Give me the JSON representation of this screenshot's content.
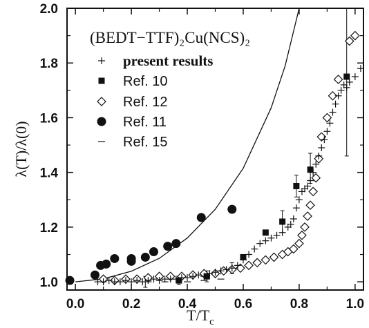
{
  "chart_data": {
    "type": "scatter",
    "title": "(BEDT−TTF)₂Cu(NCS)₂",
    "xlabel": "T/T",
    "xlabel_sub": "c",
    "ylabel": "λ(T)/λ(0)",
    "xlim": [
      -0.03,
      1.03
    ],
    "ylim": [
      0.97,
      2.0
    ],
    "x_ticks": [
      "0.0",
      "0.2",
      "0.4",
      "0.6",
      "0.8",
      "1.0"
    ],
    "y_ticks": [
      "1.0",
      "1.2",
      "1.4",
      "1.6",
      "1.8",
      "2.0"
    ],
    "legend_position": "upper-left",
    "series": [
      {
        "name": "present results",
        "marker": "plus",
        "points": [
          [
            0.08,
            1.0
          ],
          [
            0.1,
            1.0
          ],
          [
            0.12,
            1.005
          ],
          [
            0.14,
            1.0
          ],
          [
            0.16,
            1.0
          ],
          [
            0.18,
            1.005
          ],
          [
            0.2,
            1.0
          ],
          [
            0.22,
            1.005
          ],
          [
            0.24,
            1.0
          ],
          [
            0.26,
            1.005
          ],
          [
            0.28,
            1.01
          ],
          [
            0.3,
            1.005
          ],
          [
            0.32,
            1.01
          ],
          [
            0.34,
            1.01
          ],
          [
            0.36,
            1.01
          ],
          [
            0.38,
            1.015
          ],
          [
            0.4,
            1.015
          ],
          [
            0.42,
            1.02
          ],
          [
            0.44,
            1.025
          ],
          [
            0.46,
            1.02
          ],
          [
            0.48,
            1.03
          ],
          [
            0.5,
            1.035
          ],
          [
            0.52,
            1.04
          ],
          [
            0.54,
            1.045
          ],
          [
            0.56,
            1.05
          ],
          [
            0.58,
            1.06
          ],
          [
            0.6,
            1.08
          ],
          [
            0.62,
            1.1
          ],
          [
            0.64,
            1.12
          ],
          [
            0.66,
            1.14
          ],
          [
            0.68,
            1.15
          ],
          [
            0.7,
            1.16
          ],
          [
            0.72,
            1.17
          ],
          [
            0.74,
            1.18
          ],
          [
            0.76,
            1.2
          ],
          [
            0.77,
            1.21
          ],
          [
            0.78,
            1.23
          ],
          [
            0.79,
            1.27
          ],
          [
            0.8,
            1.3
          ],
          [
            0.81,
            1.33
          ],
          [
            0.82,
            1.34
          ],
          [
            0.83,
            1.35
          ],
          [
            0.84,
            1.37
          ],
          [
            0.85,
            1.4
          ],
          [
            0.86,
            1.43
          ],
          [
            0.87,
            1.46
          ],
          [
            0.88,
            1.49
          ],
          [
            0.89,
            1.52
          ],
          [
            0.9,
            1.55
          ],
          [
            0.91,
            1.58
          ],
          [
            0.92,
            1.62
          ],
          [
            0.93,
            1.65
          ],
          [
            0.94,
            1.68
          ],
          [
            0.95,
            1.7
          ],
          [
            0.96,
            1.72
          ],
          [
            0.97,
            1.71
          ],
          [
            0.98,
            1.73
          ],
          [
            1.0,
            1.75
          ],
          [
            1.02,
            1.78
          ]
        ]
      },
      {
        "name": "Ref. 10",
        "marker": "filled-square",
        "points": [
          [
            0.37,
            1.005
          ],
          [
            0.47,
            1.02
          ],
          [
            0.6,
            1.09
          ],
          [
            0.68,
            1.18
          ],
          [
            0.74,
            1.22
          ],
          [
            0.79,
            1.35
          ],
          [
            0.84,
            1.41
          ],
          [
            0.97,
            1.75
          ]
        ]
      },
      {
        "name": "Ref. 12",
        "marker": "open-diamond",
        "points": [
          [
            0.1,
            1.01
          ],
          [
            0.14,
            1.005
          ],
          [
            0.18,
            1.01
          ],
          [
            0.22,
            1.01
          ],
          [
            0.26,
            1.015
          ],
          [
            0.3,
            1.02
          ],
          [
            0.34,
            1.02
          ],
          [
            0.38,
            1.02
          ],
          [
            0.42,
            1.025
          ],
          [
            0.46,
            1.03
          ],
          [
            0.5,
            1.03
          ],
          [
            0.53,
            1.04
          ],
          [
            0.56,
            1.045
          ],
          [
            0.59,
            1.05
          ],
          [
            0.62,
            1.06
          ],
          [
            0.65,
            1.07
          ],
          [
            0.68,
            1.08
          ],
          [
            0.71,
            1.09
          ],
          [
            0.74,
            1.1
          ],
          [
            0.76,
            1.11
          ],
          [
            0.78,
            1.12
          ],
          [
            0.8,
            1.14
          ],
          [
            0.81,
            1.17
          ],
          [
            0.82,
            1.2
          ],
          [
            0.83,
            1.24
          ],
          [
            0.84,
            1.28
          ],
          [
            0.85,
            1.33
          ],
          [
            0.86,
            1.38
          ],
          [
            0.87,
            1.45
          ],
          [
            0.88,
            1.53
          ],
          [
            0.9,
            1.6
          ],
          [
            0.92,
            1.68
          ],
          [
            0.94,
            1.74
          ],
          [
            0.98,
            1.88
          ],
          [
            1.0,
            1.9
          ]
        ]
      },
      {
        "name": "Ref. 11",
        "marker": "filled-circle",
        "points": [
          [
            -0.02,
            1.005
          ],
          [
            0.07,
            1.025
          ],
          [
            0.09,
            1.06
          ],
          [
            0.11,
            1.065
          ],
          [
            0.14,
            1.085
          ],
          [
            0.2,
            1.075
          ],
          [
            0.2,
            1.085
          ],
          [
            0.25,
            1.09
          ],
          [
            0.28,
            1.11
          ],
          [
            0.33,
            1.13
          ],
          [
            0.36,
            1.14
          ],
          [
            0.45,
            1.235
          ],
          [
            0.56,
            1.265
          ]
        ]
      },
      {
        "name": "Ref. 15",
        "marker": "dash",
        "points": [
          [
            0.26,
            1.0
          ],
          [
            0.32,
            1.0
          ],
          [
            0.4,
            1.0
          ],
          [
            0.46,
            1.005
          ],
          [
            0.52,
            1.01
          ]
        ]
      }
    ],
    "error_bars": [
      {
        "x": 0.25,
        "y": 1.0,
        "low": 0.98,
        "high": 1.02
      },
      {
        "x": 0.37,
        "y": 1.005,
        "low": 0.99,
        "high": 1.02
      },
      {
        "x": 0.47,
        "y": 1.02,
        "low": 1.0,
        "high": 1.04
      },
      {
        "x": 0.56,
        "y": 1.05,
        "low": 1.03,
        "high": 1.07
      },
      {
        "x": 0.74,
        "y": 1.22,
        "low": 1.18,
        "high": 1.26
      },
      {
        "x": 0.79,
        "y": 1.35,
        "low": 1.31,
        "high": 1.39
      },
      {
        "x": 0.84,
        "y": 1.41,
        "low": 1.36,
        "high": 1.47
      },
      {
        "x": 0.97,
        "y": 1.75,
        "low": 1.46,
        "high": 2.0
      }
    ],
    "curve": {
      "label": "",
      "points": [
        [
          0.0,
          1.0
        ],
        [
          0.1,
          1.011
        ],
        [
          0.2,
          1.039
        ],
        [
          0.3,
          1.086
        ],
        [
          0.4,
          1.16
        ],
        [
          0.5,
          1.265
        ],
        [
          0.6,
          1.415
        ],
        [
          0.7,
          1.636
        ],
        [
          0.75,
          1.79
        ],
        [
          0.8,
          2.0
        ]
      ]
    }
  }
}
